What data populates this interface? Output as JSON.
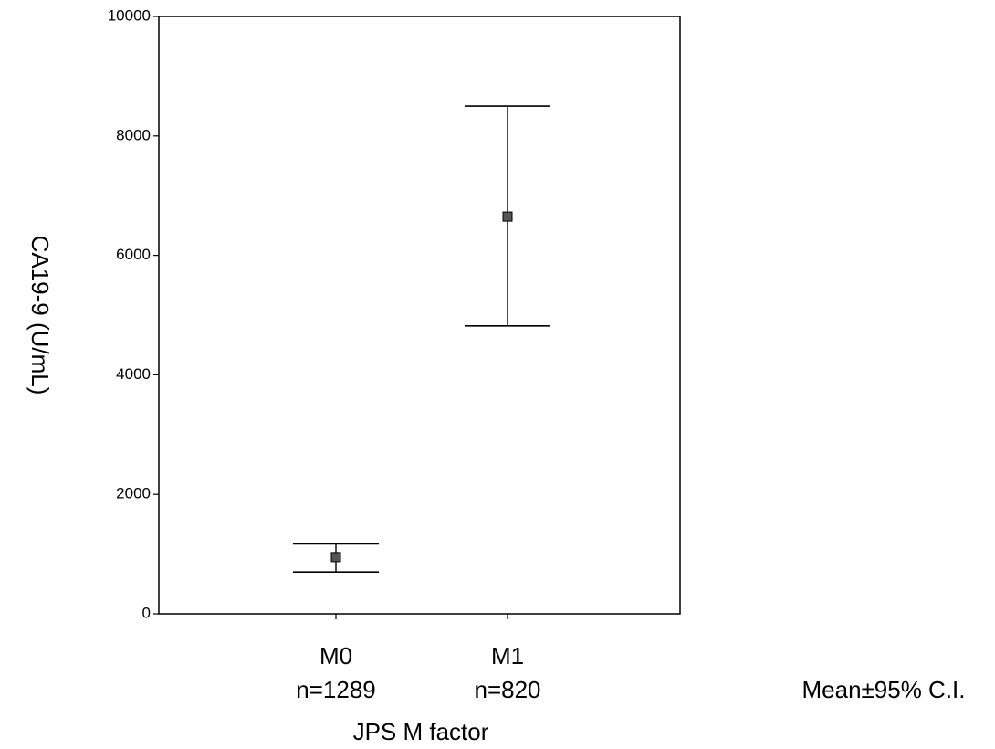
{
  "chart_data": {
    "type": "scatter",
    "subtype": "mean-with-error-bars",
    "ylabel": "CA19-9 (U/mL)",
    "xlabel": "JPS M factor",
    "ylim": [
      0,
      10000
    ],
    "yticks": [
      0,
      2000,
      4000,
      6000,
      8000,
      10000
    ],
    "categories": [
      "M0",
      "M1"
    ],
    "category_sublabels": [
      "n=1289",
      "n=820"
    ],
    "series": [
      {
        "points": [
          {
            "category": "M0",
            "mean": 950,
            "ci_low": 700,
            "ci_high": 1170
          },
          {
            "category": "M1",
            "mean": 6650,
            "ci_low": 4820,
            "ci_high": 8500
          }
        ]
      }
    ],
    "annotation": "Mean±95% C.I.",
    "grid": false,
    "legend": "none",
    "colors": {
      "axis": "#000000",
      "marker": "#555555"
    }
  }
}
